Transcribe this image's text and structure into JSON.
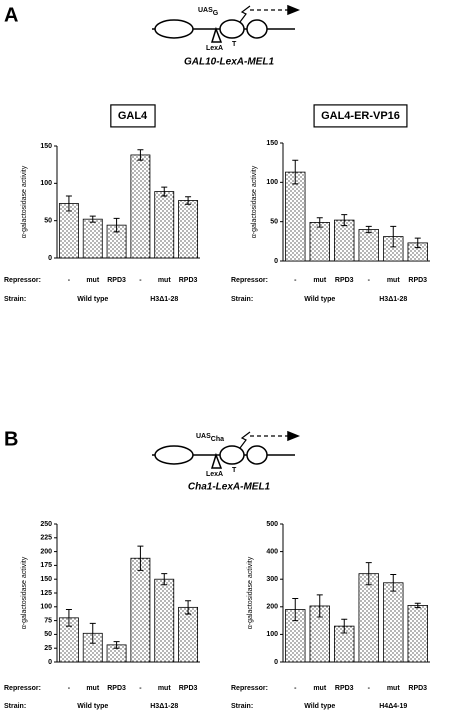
{
  "chart_data": [
    {
      "type": "bar",
      "title": "GAL4",
      "ylabel": "α-galactosidase activity",
      "row_labels": [
        "Repressor:",
        "Strain:"
      ],
      "categories": [
        "-",
        "mut",
        "RPD3",
        "-",
        "mut",
        "RPD3"
      ],
      "groups": [
        "Wild type",
        "H3Δ1-28"
      ],
      "values": [
        73,
        52,
        44,
        138,
        89,
        77
      ],
      "errors": [
        10,
        4,
        9,
        7,
        6,
        5
      ],
      "ylim": [
        0,
        150
      ],
      "yticks": [
        0,
        50,
        100,
        150
      ]
    },
    {
      "type": "bar",
      "title": "GAL4-ER-VP16",
      "ylabel": "α-galactosidase activity",
      "row_labels": [
        "Repressor:",
        "Strain:"
      ],
      "categories": [
        "-",
        "mut",
        "RPD3",
        "-",
        "mut",
        "RPD3"
      ],
      "groups": [
        "Wild type",
        "H3Δ1-28"
      ],
      "values": [
        113,
        49,
        52,
        40,
        31,
        23
      ],
      "errors": [
        15,
        6,
        7,
        4,
        13,
        6
      ],
      "ylim": [
        0,
        150
      ],
      "yticks": [
        0,
        50,
        100,
        150
      ]
    },
    {
      "type": "bar",
      "ylabel": "α-galactosidase activity",
      "row_labels": [
        "Repressor:",
        "Strain:"
      ],
      "categories": [
        "-",
        "mut",
        "RPD3",
        "-",
        "mut",
        "RPD3"
      ],
      "groups": [
        "Wild type",
        "H3Δ1-28"
      ],
      "values": [
        80,
        52,
        31,
        188,
        150,
        99
      ],
      "errors": [
        15,
        18,
        6,
        22,
        10,
        12
      ],
      "ylim": [
        0,
        250
      ],
      "yticks": [
        0,
        25,
        50,
        75,
        100,
        125,
        150,
        175,
        200,
        225,
        250
      ]
    },
    {
      "type": "bar",
      "ylabel": "α-galactosidase activity",
      "row_labels": [
        "Repressor:",
        "Strain:"
      ],
      "categories": [
        "-",
        "mut",
        "RPD3",
        "-",
        "mut",
        "RPD3"
      ],
      "groups": [
        "Wild type",
        "H4Δ4-19"
      ],
      "values": [
        190,
        203,
        130,
        320,
        287,
        205
      ],
      "errors": [
        40,
        40,
        25,
        40,
        30,
        8
      ],
      "ylim": [
        0,
        500
      ],
      "yticks": [
        0,
        100,
        200,
        300,
        400,
        500
      ]
    }
  ],
  "panels": [
    {
      "label": "A",
      "uas": "UAS",
      "uas_sub": "G",
      "lexa": "LexA",
      "t": "T",
      "caption": "GAL10-LexA-MEL1"
    },
    {
      "label": "B",
      "uas": "UAS",
      "uas_sub": "Cha",
      "lexa": "LexA",
      "t": "T",
      "caption": "Cha1-LexA-MEL1"
    }
  ]
}
